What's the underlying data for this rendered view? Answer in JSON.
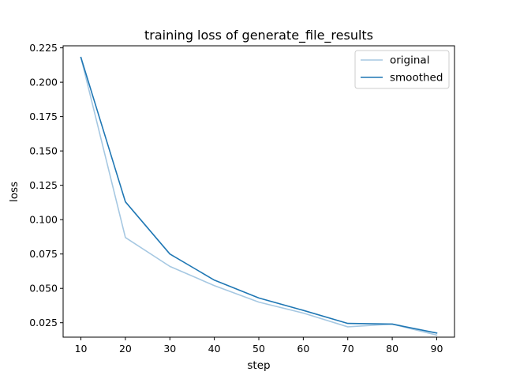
{
  "chart_data": {
    "type": "line",
    "title": "training loss of generate_file_results",
    "xlabel": "step",
    "ylabel": "loss",
    "x": [
      10,
      20,
      30,
      40,
      50,
      60,
      70,
      80,
      90
    ],
    "xlim": [
      6,
      94
    ],
    "ylim": [
      0.0145,
      0.2265
    ],
    "xticks": [
      "10",
      "20",
      "30",
      "40",
      "50",
      "60",
      "70",
      "80",
      "90"
    ],
    "yticks": [
      "0.025",
      "0.050",
      "0.075",
      "0.100",
      "0.125",
      "0.150",
      "0.175",
      "0.200",
      "0.225"
    ],
    "grid": false,
    "legend_position": "top-right",
    "series": [
      {
        "name": "original",
        "color": "#a6c8e2",
        "values": [
          0.218,
          0.087,
          0.066,
          0.052,
          0.04,
          0.032,
          0.022,
          0.024,
          0.016
        ]
      },
      {
        "name": "smoothed",
        "color": "#1f77b4",
        "values": [
          0.218,
          0.113,
          0.075,
          0.056,
          0.043,
          0.034,
          0.0245,
          0.024,
          0.0175
        ]
      }
    ]
  }
}
